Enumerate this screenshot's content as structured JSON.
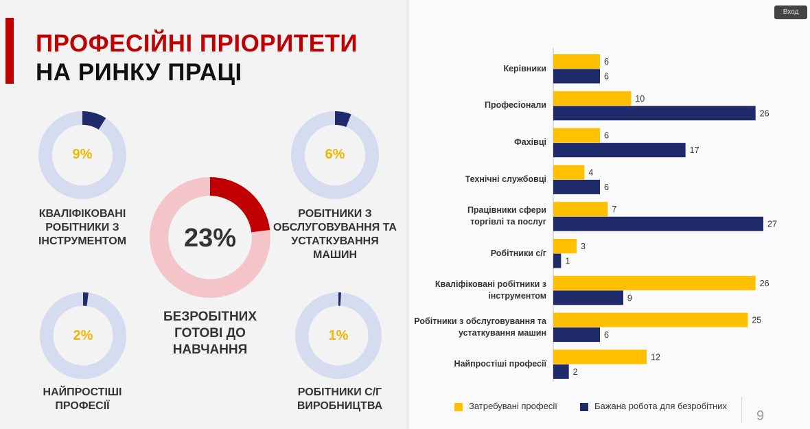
{
  "slide": {
    "title_line1": "ПРОФЕСІЙНІ ПРІОРИТЕТИ",
    "title_line2": "НА РИНКУ ПРАЦІ",
    "page_number": "9",
    "enter_button": "Вход"
  },
  "donuts": [
    {
      "value": 9,
      "label": "9%",
      "caption": "КВАЛІФІКОВАНІ\nРОБІТНИКИ З\nІНСТРУМЕНТОМ"
    },
    {
      "value": 6,
      "label": "6%",
      "caption": "РОБІТНИКИ З\nОБСЛУГОВУВАННЯ ТА\nУСТАТКУВАННЯ\nМАШИН"
    },
    {
      "value": 2,
      "label": "2%",
      "caption": "НАЙПРОСТІШІ\nПРОФЕСІЇ"
    },
    {
      "value": 1,
      "label": "1%",
      "caption": "РОБІТНИКИ С/Г\nВИРОБНИЦТВА"
    }
  ],
  "main_donut": {
    "value": 23,
    "label": "23%",
    "caption": "БЕЗРОБІТНИХ\nГОТОВІ ДО\nНАВЧАННЯ"
  },
  "colors": {
    "red": "#c00000",
    "navy": "#1f2a6b",
    "yellow": "#ffc000",
    "light_blue": "#d5dcef",
    "light_red": "#f3c5c9",
    "gold_text": "#f2b600"
  },
  "chart_data": {
    "type": "bar",
    "orientation": "horizontal",
    "categories": [
      "Керівники",
      "Професіонали",
      "Фахівці",
      "Технічні службовці",
      "Працівники сфери\nторгівлі та послуг",
      "Робітники с/г",
      "Кваліфіковані робітники з\nінструментом",
      "Робітники з обслуговування та\nустаткування машин",
      "Найпростіші професії"
    ],
    "series": [
      {
        "name": "Затребувані професії",
        "color": "#ffc000",
        "values": [
          6,
          10,
          6,
          4,
          7,
          3,
          26,
          25,
          12
        ]
      },
      {
        "name": "Бажана робота для безробітних",
        "color": "#1f2a6b",
        "values": [
          6,
          26,
          17,
          6,
          27,
          1,
          9,
          6,
          2
        ]
      }
    ],
    "xlim": [
      0,
      27
    ],
    "legend": "bottom",
    "grid": false
  }
}
